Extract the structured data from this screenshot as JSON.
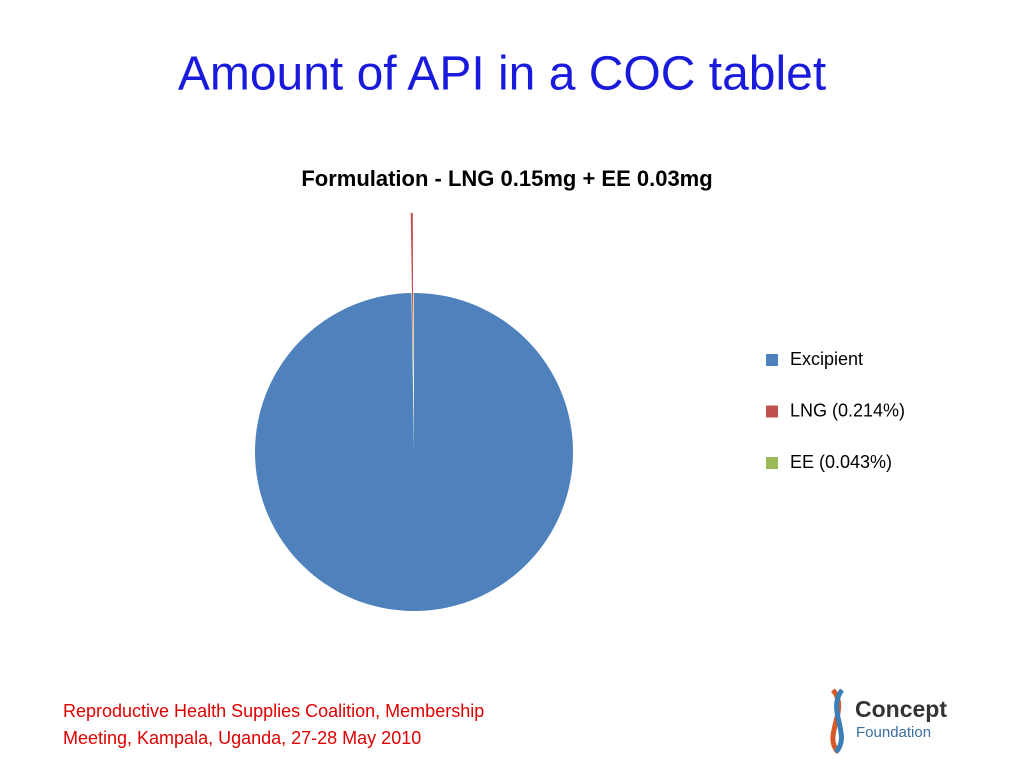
{
  "title": "Amount of API in a COC tablet",
  "chart_data": {
    "type": "pie",
    "title": "Formulation - LNG 0.15mg + EE 0.03mg",
    "categories": [
      "Excipient",
      "LNG (0.214%)",
      "EE (0.043%)"
    ],
    "values": [
      99.743,
      0.214,
      0.043
    ],
    "colors": [
      "#4f81bd",
      "#c0504d",
      "#9bbb59"
    ],
    "legend": "right"
  },
  "footer": [
    "Reproductive Health Supplies Coalition, Membership",
    "Meeting, Kampala, Uganda, 27-28 May 2010"
  ],
  "logo": {
    "name": "Concept",
    "subtitle": "Foundation"
  }
}
